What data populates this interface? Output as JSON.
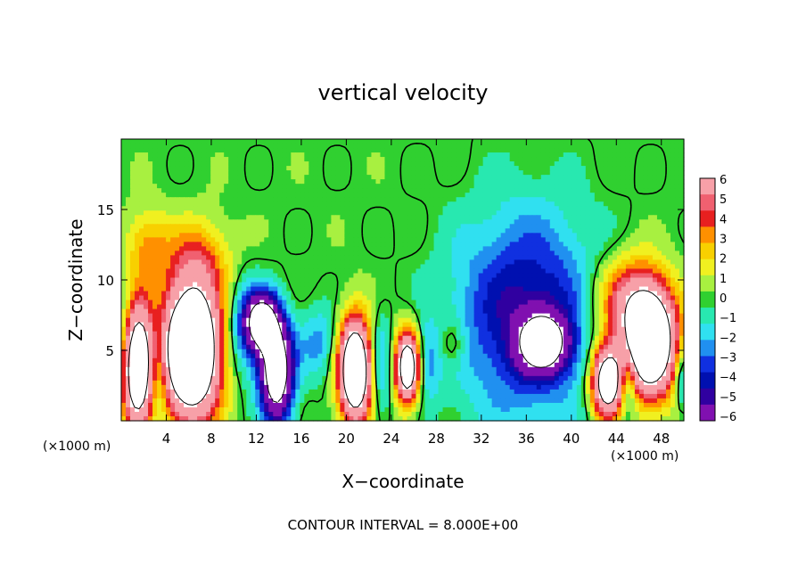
{
  "chart_data": {
    "type": "heatmap",
    "title": "vertical velocity",
    "xlabel": "X−coordinate",
    "ylabel": "Z−coordinate",
    "x_unit_left": "(×1000 m)",
    "x_unit_right": "(×1000 m)",
    "xlim": [
      0,
      50
    ],
    "ylim": [
      0,
      20
    ],
    "x_ticks": [
      4,
      8,
      12,
      16,
      20,
      24,
      28,
      32,
      36,
      40,
      44,
      48
    ],
    "y_ticks": [
      5,
      10,
      15
    ],
    "footer": "CONTOUR INTERVAL = 8.000E+00",
    "colorbar": {
      "labels": [
        "6",
        "5",
        "4",
        "3",
        "2",
        "1",
        "0",
        "−1",
        "−2",
        "−3",
        "−4",
        "−5",
        "−6"
      ],
      "colors": [
        "#f7a0a8",
        "#f06070",
        "#e82020",
        "#ff9000",
        "#f8d000",
        "#f0f020",
        "#a8f040",
        "#30d030",
        "#28e8b0",
        "#30e0f0",
        "#2090f0",
        "#1030e0",
        "#0010b0",
        "#3000a0",
        "#8010b0"
      ],
      "vmin": -6,
      "vmax": 6
    },
    "features": [
      {
        "kind": "updraft",
        "x": 1.3,
        "z": 4.0,
        "sx": 1.0,
        "sz": 3.0,
        "amp": 14
      },
      {
        "kind": "updraft",
        "x": 6.2,
        "z": 5.0,
        "sx": 1.8,
        "sz": 3.3,
        "amp": 16
      },
      {
        "kind": "updraft",
        "x": 7.0,
        "z": 11.5,
        "sx": 2.0,
        "sz": 2.0,
        "amp": 2.8
      },
      {
        "kind": "updraft",
        "x": 2.3,
        "z": 12.5,
        "sx": 1.4,
        "sz": 1.8,
        "amp": 2.8
      },
      {
        "kind": "updraft",
        "x": 20.8,
        "z": 3.6,
        "sx": 1.0,
        "sz": 2.5,
        "amp": 14
      },
      {
        "kind": "updraft",
        "x": 25.5,
        "z": 3.8,
        "sx": 0.8,
        "sz": 1.8,
        "amp": 12
      },
      {
        "kind": "updraft",
        "x": 43.2,
        "z": 2.8,
        "sx": 1.0,
        "sz": 1.8,
        "amp": 12
      },
      {
        "kind": "updraft",
        "x": 47.0,
        "z": 5.5,
        "sx": 1.6,
        "sz": 2.6,
        "amp": 14
      },
      {
        "kind": "updraft",
        "x": 45.0,
        "z": 8.5,
        "sx": 2.2,
        "sz": 2.2,
        "amp": 5
      },
      {
        "kind": "updraft",
        "x": 29.5,
        "z": 5.5,
        "sx": 0.8,
        "sz": 1.2,
        "amp": 2.0
      },
      {
        "kind": "downdraft",
        "x": 0.3,
        "z": 5.0,
        "sx": 0.8,
        "sz": 3.0,
        "amp": -4
      },
      {
        "kind": "downdraft",
        "x": 3.3,
        "z": 3.5,
        "sx": 0.6,
        "sz": 2.5,
        "amp": -3
      },
      {
        "kind": "downdraft",
        "x": 13.8,
        "z": 3.5,
        "sx": 1.0,
        "sz": 2.5,
        "amp": -12
      },
      {
        "kind": "downdraft",
        "x": 12.5,
        "z": 7.0,
        "sx": 1.0,
        "sz": 1.4,
        "amp": -10
      },
      {
        "kind": "downdraft",
        "x": 11.0,
        "z": 6.5,
        "sx": 1.2,
        "sz": 2.5,
        "amp": -3
      },
      {
        "kind": "downdraft",
        "x": 17.5,
        "z": 5.5,
        "sx": 1.2,
        "sz": 1.8,
        "amp": -2.5
      },
      {
        "kind": "downdraft",
        "x": 23.0,
        "z": 3.8,
        "sx": 0.7,
        "sz": 2.5,
        "amp": -3
      },
      {
        "kind": "downdraft",
        "x": 27.0,
        "z": 4.0,
        "sx": 0.8,
        "sz": 2.0,
        "amp": -3
      },
      {
        "kind": "downdraft",
        "x": 36.0,
        "z": 7.5,
        "sx": 4.5,
        "sz": 5.2,
        "amp": -5
      },
      {
        "kind": "downdraft",
        "x": 37.5,
        "z": 5.5,
        "sx": 1.5,
        "sz": 1.4,
        "amp": -9
      },
      {
        "kind": "downdraft",
        "x": 45.0,
        "z": 2.5,
        "sx": 0.5,
        "sz": 1.6,
        "amp": -4
      },
      {
        "kind": "downdraft",
        "x": 49.8,
        "z": 3.0,
        "sx": 0.4,
        "sz": 1.6,
        "amp": -3
      }
    ],
    "contour_levels": [
      -8,
      0,
      8
    ]
  }
}
